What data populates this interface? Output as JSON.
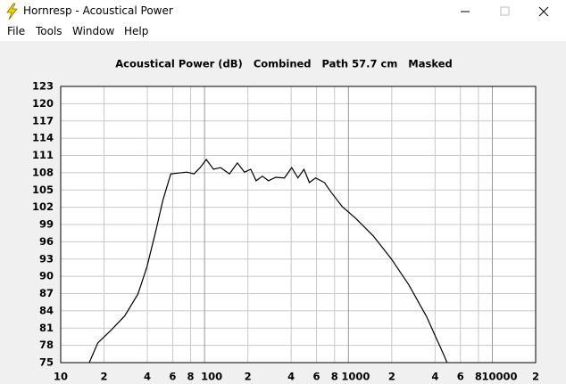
{
  "window": {
    "title": "Hornresp - Acoustical Power"
  },
  "menu": [
    "File",
    "Tools",
    "Window",
    "Help"
  ],
  "chart_data": {
    "type": "line",
    "title": "Acoustical Power (dB)   Combined   Path 57.7 cm   Masked",
    "xscale": "log",
    "xlim": [
      10,
      20000
    ],
    "ylim": [
      75,
      123
    ],
    "grid": true,
    "xticks": [
      10,
      {
        "value": 20,
        "label": "2"
      },
      {
        "value": 40,
        "label": "4"
      },
      {
        "value": 60,
        "label": "6"
      },
      {
        "value": 80,
        "label": "8"
      },
      100,
      {
        "value": 200,
        "label": "2"
      },
      {
        "value": 400,
        "label": "4"
      },
      {
        "value": 600,
        "label": "6"
      },
      {
        "value": 800,
        "label": "8"
      },
      1000,
      {
        "value": 2000,
        "label": "2"
      },
      {
        "value": 4000,
        "label": "4"
      },
      {
        "value": 6000,
        "label": "6"
      },
      {
        "value": 8000,
        "label": "8"
      },
      10000,
      {
        "value": 20000,
        "label": "2"
      }
    ],
    "yticks": [
      75,
      78,
      81,
      84,
      87,
      90,
      93,
      96,
      99,
      102,
      105,
      108,
      111,
      114,
      117,
      120,
      123
    ],
    "series": [
      {
        "color": "#000000",
        "x": [
          15.8,
          18.1,
          22.5,
          27.8,
          34.4,
          39.7,
          45.7,
          51.3,
          58.2,
          75.3,
          84.4,
          93.2,
          102.8,
          115.3,
          129.2,
          148.8,
          169.1,
          189.5,
          209.4,
          228.2,
          252,
          278,
          312,
          359,
          403,
          445,
          491,
          535,
          591,
          681,
          753,
          906,
          1120,
          1489,
          1977,
          2630,
          3491,
          4645,
          4845
        ],
        "values": [
          75,
          78.4,
          80.7,
          83.1,
          86.9,
          91.6,
          97.8,
          103.2,
          107.8,
          108.1,
          107.8,
          108.9,
          110.3,
          108.6,
          108.9,
          107.8,
          109.7,
          108.1,
          108.6,
          106.6,
          107.4,
          106.6,
          107.2,
          107.1,
          108.9,
          107.1,
          108.6,
          106.3,
          107.1,
          106.3,
          104.7,
          102.1,
          100.1,
          97.0,
          93.1,
          88.5,
          83.0,
          76.1,
          75
        ]
      }
    ]
  }
}
